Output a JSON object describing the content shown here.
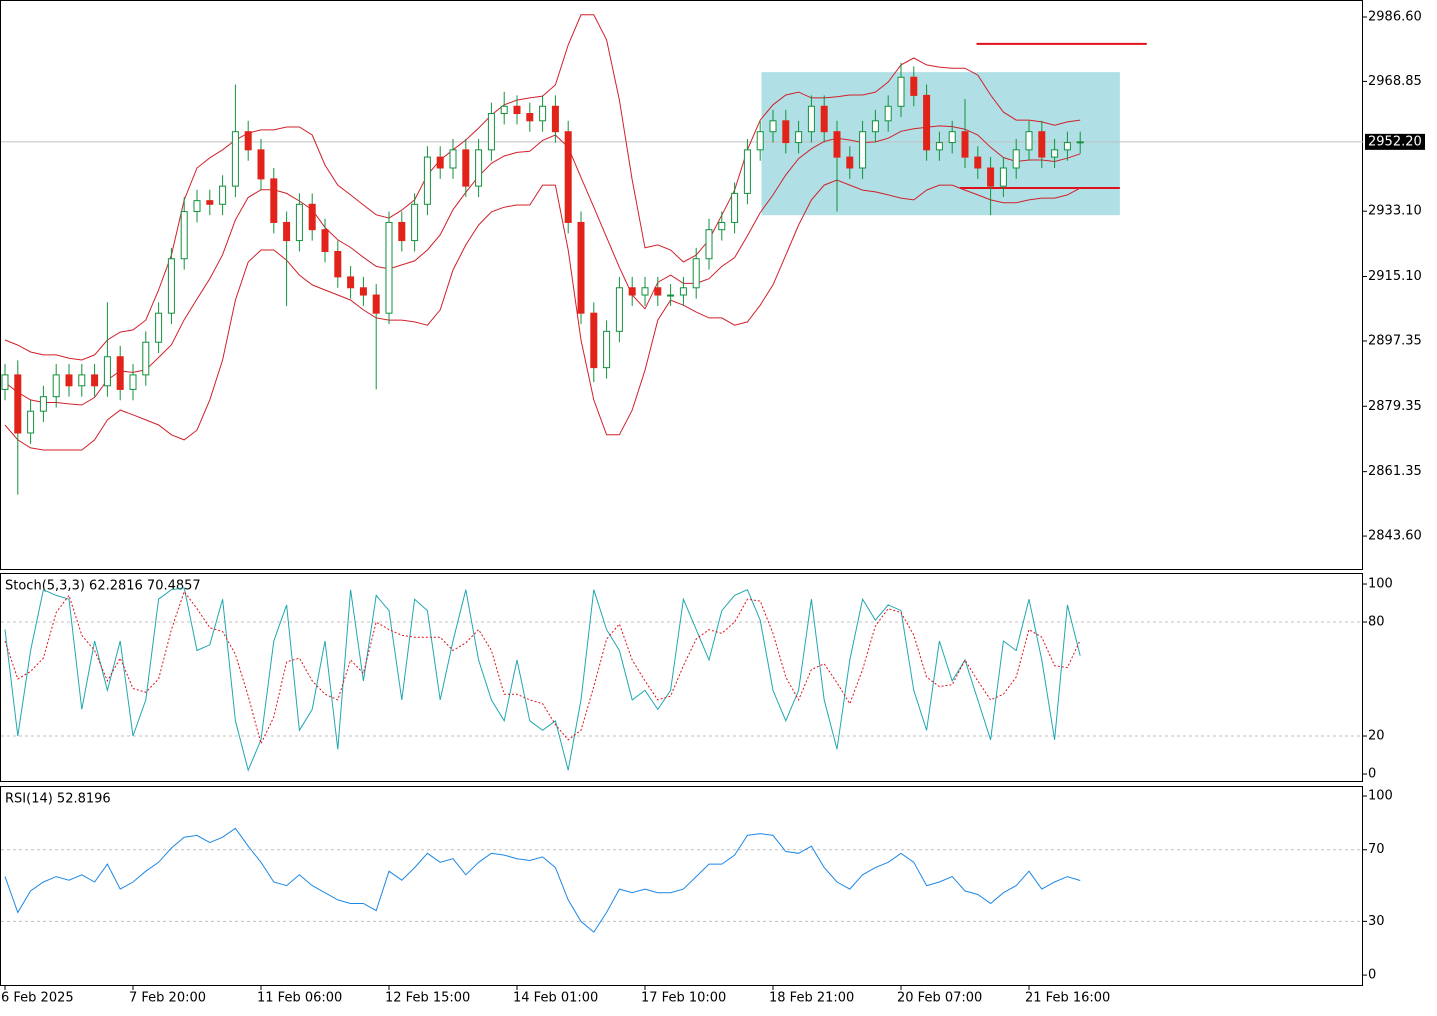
{
  "chart_data": [
    {
      "type": "candlestick",
      "categories": [
        "6 Feb 2025",
        null,
        null,
        null,
        null,
        null,
        null,
        null,
        null,
        null,
        "7 Feb 20:00",
        null,
        null,
        null,
        null,
        null,
        null,
        null,
        null,
        null,
        "11 Feb 06:00",
        null,
        null,
        null,
        null,
        null,
        null,
        null,
        null,
        null,
        "12 Feb 15:00",
        null,
        null,
        null,
        null,
        null,
        null,
        null,
        null,
        null,
        "14 Feb 01:00",
        null,
        null,
        null,
        null,
        null,
        null,
        null,
        null,
        null,
        "17 Feb 10:00",
        null,
        null,
        null,
        null,
        null,
        null,
        null,
        null,
        null,
        "18 Feb 21:00",
        null,
        null,
        null,
        null,
        null,
        null,
        null,
        null,
        null,
        "20 Feb 07:00",
        null,
        null,
        null,
        null,
        null,
        null,
        null,
        null,
        null,
        "21 Feb 16:00",
        null,
        null,
        null,
        null
      ],
      "open": [
        2884,
        2888,
        2872,
        2878,
        2882,
        2888,
        2885,
        2888,
        2885,
        2893,
        2884,
        2888,
        2897,
        2905,
        2920,
        2933,
        2936,
        2935,
        2940,
        2955,
        2950,
        2942,
        2930,
        2925,
        2935,
        2928,
        2922,
        2915,
        2912,
        2910,
        2905,
        2930,
        2925,
        2935,
        2948,
        2945,
        2950,
        2940,
        2950,
        2960,
        2962,
        2960,
        2958,
        2962,
        2955,
        2930,
        2905,
        2890,
        2900,
        2912,
        2910,
        2912,
        2910,
        2910,
        2912,
        2920,
        2928,
        2930,
        2938,
        2950,
        2955,
        2958,
        2952,
        2955,
        2962,
        2955,
        2948,
        2945,
        2955,
        2958,
        2962,
        2970,
        2965,
        2950,
        2952,
        2955,
        2948,
        2945,
        2940,
        2945,
        2950,
        2955,
        2948,
        2950,
        2952
      ],
      "high": [
        2891,
        2892,
        2881,
        2885,
        2891,
        2891,
        2891,
        2891,
        2908,
        2896,
        2891,
        2900,
        2908,
        2923,
        2937,
        2939,
        2939,
        2943,
        2968,
        2958,
        2953,
        2945,
        2933,
        2938,
        2938,
        2931,
        2925,
        2918,
        2915,
        2913,
        2933,
        2933,
        2938,
        2951,
        2951,
        2953,
        2953,
        2953,
        2963,
        2966,
        2965,
        2963,
        2965,
        2965,
        2958,
        2933,
        2908,
        2903,
        2915,
        2915,
        2915,
        2915,
        2913,
        2915,
        2923,
        2931,
        2933,
        2941,
        2953,
        2958,
        2961,
        2961,
        2958,
        2965,
        2965,
        2958,
        2951,
        2958,
        2961,
        2965,
        2974,
        2973,
        2968,
        2955,
        2958,
        2964,
        2951,
        2948,
        2948,
        2953,
        2958,
        2958,
        2953,
        2955,
        2955
      ],
      "low": [
        2881,
        2855,
        2869,
        2875,
        2879,
        2882,
        2882,
        2882,
        2882,
        2881,
        2881,
        2885,
        2894,
        2902,
        2917,
        2930,
        2932,
        2932,
        2937,
        2947,
        2939,
        2927,
        2907,
        2922,
        2925,
        2919,
        2912,
        2909,
        2907,
        2884,
        2902,
        2922,
        2922,
        2932,
        2942,
        2942,
        2937,
        2937,
        2947,
        2957,
        2957,
        2955,
        2955,
        2952,
        2927,
        2902,
        2886,
        2887,
        2897,
        2907,
        2907,
        2907,
        2907,
        2907,
        2909,
        2917,
        2925,
        2927,
        2935,
        2947,
        2952,
        2949,
        2949,
        2952,
        2952,
        2933,
        2942,
        2942,
        2952,
        2955,
        2959,
        2962,
        2947,
        2947,
        2949,
        2945,
        2942,
        2932,
        2937,
        2942,
        2947,
        2945,
        2945,
        2947,
        2949
      ],
      "close": [
        2888,
        2872,
        2878,
        2882,
        2888,
        2885,
        2888,
        2885,
        2893,
        2884,
        2888,
        2897,
        2905,
        2920,
        2933,
        2936,
        2935,
        2940,
        2955,
        2950,
        2942,
        2930,
        2925,
        2935,
        2928,
        2922,
        2915,
        2912,
        2910,
        2905,
        2930,
        2925,
        2935,
        2948,
        2945,
        2950,
        2940,
        2950,
        2960,
        2962,
        2960,
        2958,
        2962,
        2955,
        2930,
        2905,
        2890,
        2900,
        2912,
        2910,
        2912,
        2910,
        2910,
        2912,
        2920,
        2928,
        2930,
        2938,
        2950,
        2955,
        2958,
        2952,
        2955,
        2962,
        2955,
        2948,
        2945,
        2955,
        2958,
        2962,
        2970,
        2965,
        2950,
        2952,
        2955,
        2948,
        2945,
        2940,
        2945,
        2950,
        2955,
        2948,
        2950,
        2952,
        2952.2
      ],
      "up_color": "#12913c",
      "down_color": "#e2231a",
      "series": [
        {
          "color": "#d0202a",
          "values": [
            2897.6,
            2896.2,
            2894.3,
            2893.5,
            2893.5,
            2892.6,
            2892.1,
            2893.5,
            2897.6,
            2899.8,
            2900.4,
            2903.1,
            2911.4,
            2921.0,
            2936.2,
            2945.0,
            2947.8,
            2950.0,
            2952.7,
            2954.6,
            2955.5,
            2955.5,
            2956.3,
            2956.3,
            2954.1,
            2945.8,
            2940.3,
            2937.6,
            2934.8,
            2932.1,
            2931.2,
            2933.4,
            2936.2,
            2943.1,
            2947.2,
            2950.0,
            2952.7,
            2956.0,
            2959.6,
            2962.4,
            2963.7,
            2964.3,
            2964.8,
            2967.9,
            2978.9,
            2987.2,
            2987.2,
            2980.3,
            2963.7,
            2941.7,
            2923.0,
            2923.8,
            2922.4,
            2919.1,
            2921.0,
            2925.2,
            2932.0,
            2938.9,
            2950.0,
            2958.2,
            2962.4,
            2965.1,
            2965.9,
            2964.3,
            2964.3,
            2964.6,
            2965.1,
            2965.1,
            2965.9,
            2968.7,
            2973.4,
            2975.3,
            2973.4,
            2972.8,
            2972.5,
            2972.5,
            2970.6,
            2965.1,
            2960.4,
            2958.2,
            2958.2,
            2957.7,
            2956.8,
            2957.7,
            2958.2
          ]
        },
        {
          "color": "#d0202a",
          "values": [
            2885.9,
            2883.2,
            2881.1,
            2880.4,
            2880.4,
            2880.0,
            2879.7,
            2881.8,
            2886.6,
            2889.1,
            2888.7,
            2889.4,
            2892.8,
            2896.3,
            2903.2,
            2908.9,
            2914.5,
            2921.1,
            2930.7,
            2936.9,
            2939.0,
            2939.0,
            2938.0,
            2935.9,
            2933.5,
            2928.6,
            2925.2,
            2923.1,
            2920.4,
            2917.9,
            2917.2,
            2918.3,
            2919.4,
            2922.4,
            2926.6,
            2933.5,
            2938.3,
            2942.7,
            2946.3,
            2948.3,
            2949.3,
            2949.6,
            2952.6,
            2954.1,
            2950.7,
            2942.4,
            2934.2,
            2925.9,
            2917.6,
            2910.0,
            2906.2,
            2913.5,
            2915.5,
            2913.2,
            2913.2,
            2914.5,
            2917.9,
            2920.3,
            2926.3,
            2932.7,
            2937.6,
            2943.1,
            2947.6,
            2950.3,
            2952.3,
            2953.2,
            2952.7,
            2952.0,
            2952.2,
            2953.2,
            2955.1,
            2955.8,
            2956.2,
            2956.6,
            2956.4,
            2955.7,
            2954.1,
            2950.7,
            2947.9,
            2946.8,
            2947.2,
            2947.2,
            2946.8,
            2947.7,
            2948.9
          ]
        },
        {
          "color": "#d0202a",
          "values": [
            2874.2,
            2870.1,
            2867.9,
            2867.3,
            2867.3,
            2867.3,
            2867.3,
            2870.1,
            2875.6,
            2878.3,
            2877.0,
            2875.6,
            2874.2,
            2871.5,
            2870.1,
            2872.8,
            2881.1,
            2892.1,
            2908.6,
            2919.1,
            2922.4,
            2922.4,
            2919.6,
            2915.5,
            2912.8,
            2911.4,
            2910.0,
            2908.6,
            2905.9,
            2903.7,
            2903.1,
            2903.1,
            2902.6,
            2901.7,
            2905.9,
            2916.9,
            2923.8,
            2929.3,
            2932.9,
            2934.2,
            2934.8,
            2934.8,
            2940.3,
            2940.3,
            2922.4,
            2897.6,
            2881.1,
            2871.5,
            2871.5,
            2878.3,
            2889.3,
            2903.1,
            2908.6,
            2907.2,
            2905.3,
            2903.7,
            2903.7,
            2901.7,
            2902.6,
            2907.2,
            2912.8,
            2921.0,
            2929.3,
            2936.2,
            2940.3,
            2941.7,
            2940.3,
            2938.9,
            2938.4,
            2937.6,
            2936.7,
            2936.2,
            2938.9,
            2940.3,
            2940.3,
            2938.9,
            2937.6,
            2936.2,
            2935.4,
            2935.4,
            2936.2,
            2936.7,
            2936.7,
            2937.6,
            2939.5
          ]
        }
      ],
      "ylim": [
        2834.25,
        2991.28
      ],
      "yticks": [
        {
          "value": 2986.6,
          "label": "2986.60"
        },
        2968.85,
        {
          "value": 2933.1,
          "label": "2933.10"
        },
        {
          "value": 2915.1,
          "label": "2915.10"
        },
        2897.35,
        2879.35,
        2861.35,
        {
          "value": 2843.6,
          "label": "2843.60"
        }
      ],
      "last_price": {
        "value": 2952.2,
        "label": "2952.20"
      },
      "zone": {
        "low": 2932.0,
        "high": 2971.4,
        "color": "#b0e0e6"
      },
      "levels": [
        {
          "value": 2979.2,
          "color": "#e0101a"
        },
        {
          "value": 2939.5,
          "color": "#e0101a"
        }
      ]
    },
    {
      "type": "line",
      "title": "Stoch(5,3,3) 62.2816 70.4857",
      "series": [
        {
          "color": "#20a8b0",
          "dash": false,
          "values": [
            76,
            20,
            65,
            97,
            94,
            92,
            34,
            70,
            44,
            70,
            20,
            39,
            92,
            97,
            98,
            65,
            68,
            92,
            28,
            2,
            18,
            70,
            89,
            23,
            34,
            70,
            13,
            97,
            49,
            94,
            86,
            39,
            92,
            86,
            39,
            70,
            97,
            60,
            39,
            28,
            60,
            28,
            23,
            28,
            2,
            39,
            97,
            76,
            65,
            39,
            44,
            34,
            44,
            92,
            76,
            60,
            86,
            94,
            97,
            81,
            44,
            28,
            44,
            92,
            39,
            13,
            60,
            92,
            81,
            89,
            86,
            44,
            23,
            70,
            49,
            60,
            39,
            18,
            70,
            65,
            92,
            60,
            18,
            89,
            62.2816
          ]
        },
        {
          "color": "#e0101a",
          "dash": true,
          "values": [
            70,
            50,
            54,
            61,
            85,
            94,
            73,
            65,
            49,
            61,
            45,
            43,
            50,
            76,
            96,
            87,
            77,
            75,
            63,
            41,
            16,
            30,
            59,
            61,
            49,
            42,
            39,
            60,
            53,
            80,
            76,
            73,
            72,
            72,
            72,
            65,
            69,
            76,
            65,
            42,
            42,
            39,
            37,
            26,
            18,
            23,
            46,
            71,
            79,
            60,
            49,
            39,
            41,
            57,
            71,
            76,
            74,
            80,
            92,
            91,
            74,
            51,
            39,
            55,
            58,
            48,
            37,
            55,
            78,
            87,
            85,
            73,
            51,
            46,
            47,
            60,
            49,
            39,
            42,
            51,
            76,
            72,
            57,
            56,
            70.4857
          ]
        }
      ],
      "ylim": [
        -4.2,
        105.8
      ],
      "yticks": [
        100,
        80,
        20,
        0
      ],
      "levels": [
        80,
        20
      ]
    },
    {
      "type": "line",
      "title": "RSI(14) 52.8196",
      "series": [
        {
          "color": "#1e88e5",
          "dash": false,
          "values": [
            55,
            35,
            47,
            52,
            55,
            53,
            56,
            52,
            62,
            48,
            52,
            58,
            63,
            71,
            77,
            78,
            74,
            77,
            82,
            72,
            63,
            52,
            50,
            56,
            50,
            46,
            42,
            40,
            40,
            36,
            58,
            53,
            60,
            68,
            63,
            65,
            56,
            63,
            68,
            67,
            65,
            64,
            66,
            60,
            42,
            30,
            24,
            35,
            48,
            46,
            48,
            46,
            46,
            48,
            55,
            62,
            62,
            67,
            78,
            79,
            78,
            69,
            68,
            72,
            60,
            52,
            48,
            56,
            60,
            63,
            68,
            63,
            50,
            52,
            55,
            47,
            45,
            40,
            46,
            50,
            58,
            48,
            52,
            55,
            52.8196
          ]
        }
      ],
      "ylim": [
        -6.1,
        105.6
      ],
      "yticks": [
        100,
        70,
        30,
        0
      ],
      "levels": [
        70,
        30
      ]
    }
  ]
}
